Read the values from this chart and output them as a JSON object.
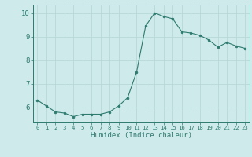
{
  "x": [
    0,
    1,
    2,
    3,
    4,
    5,
    6,
    7,
    8,
    9,
    10,
    11,
    12,
    13,
    14,
    15,
    16,
    17,
    18,
    19,
    20,
    21,
    22,
    23
  ],
  "y": [
    6.3,
    6.05,
    5.8,
    5.75,
    5.6,
    5.7,
    5.7,
    5.7,
    5.8,
    6.05,
    6.4,
    7.5,
    9.45,
    10.0,
    9.85,
    9.75,
    9.2,
    9.15,
    9.05,
    8.85,
    8.55,
    8.75,
    8.6,
    8.5
  ],
  "xlabel": "Humidex (Indice chaleur)",
  "ylim": [
    5.35,
    10.35
  ],
  "xlim": [
    -0.5,
    23.5
  ],
  "yticks": [
    6,
    7,
    8,
    9,
    10
  ],
  "xticks": [
    0,
    1,
    2,
    3,
    4,
    5,
    6,
    7,
    8,
    9,
    10,
    11,
    12,
    13,
    14,
    15,
    16,
    17,
    18,
    19,
    20,
    21,
    22,
    23
  ],
  "line_color": "#2d7a6e",
  "marker_color": "#2d7a6e",
  "bg_color": "#ceeaea",
  "grid_color": "#b8d8d8",
  "axis_color": "#2d7a6e",
  "tick_color": "#2d7a6e",
  "label_color": "#2d7a6e",
  "font_size_tick_x": 5.2,
  "font_size_tick_y": 6.5,
  "font_size_label": 6.5,
  "line_width": 0.8,
  "marker_size": 2.0
}
